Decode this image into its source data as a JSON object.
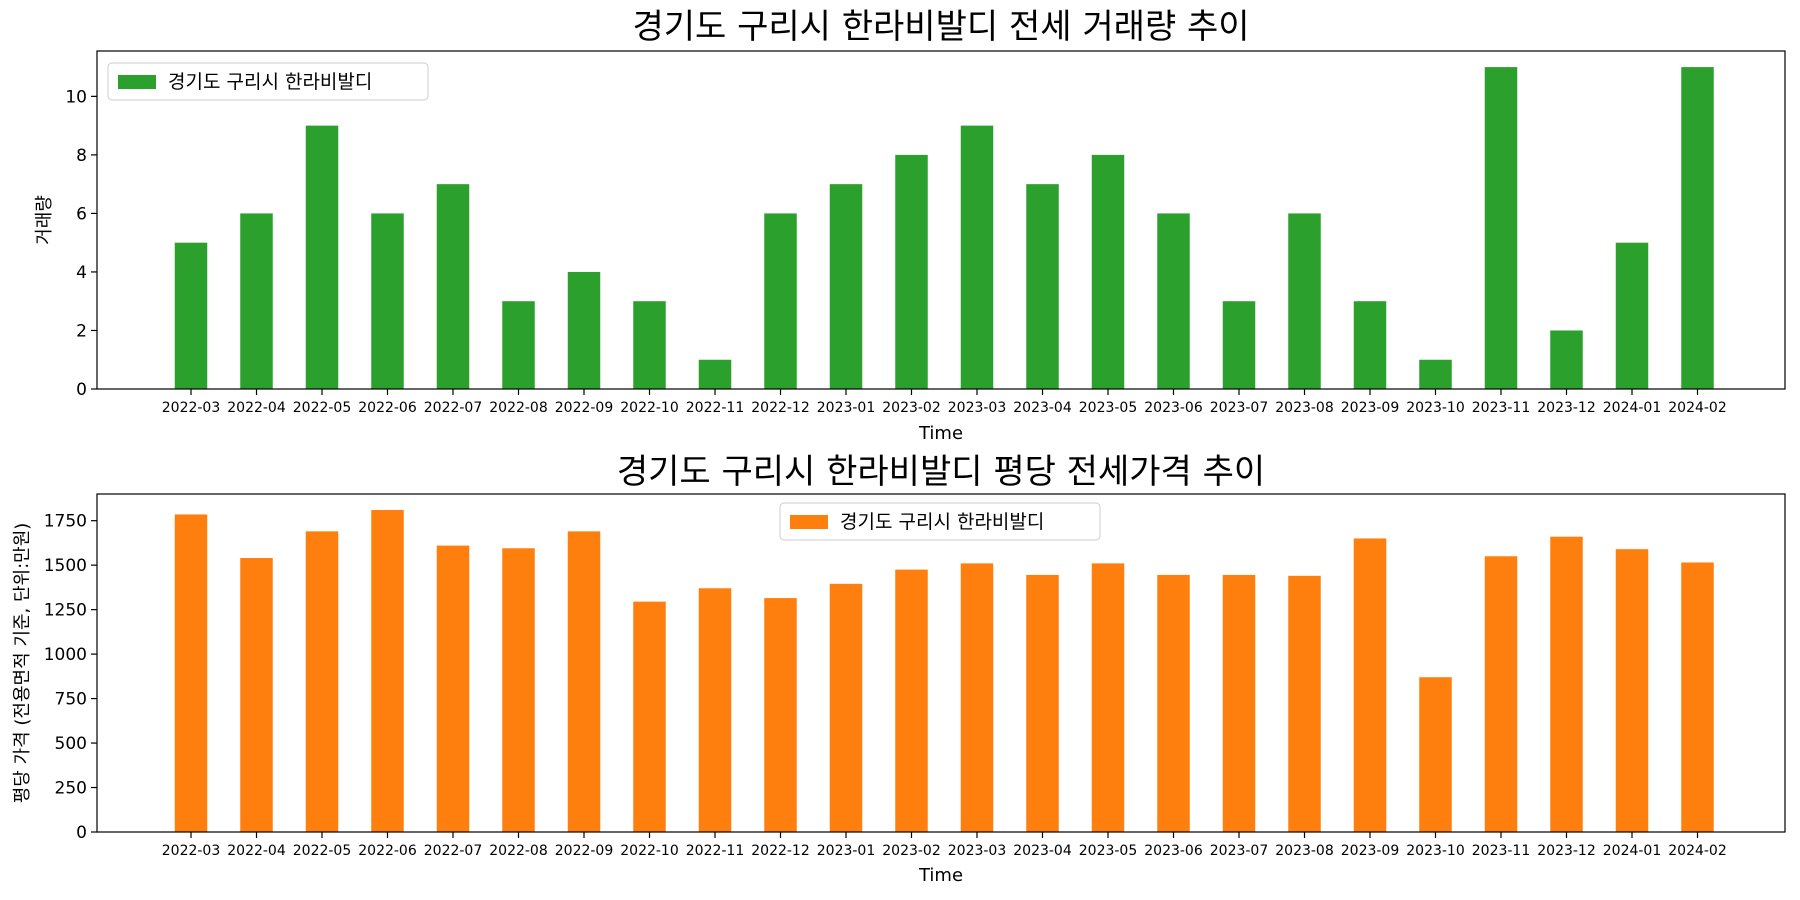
{
  "chart_data": [
    {
      "type": "bar",
      "title": "경기도 구리시 한라비발디 전세 거래량 추이",
      "xlabel": "Time",
      "ylabel": "거래량",
      "ylim": [
        0,
        11.55
      ],
      "yticks": [
        0,
        2,
        4,
        6,
        8,
        10
      ],
      "grid": false,
      "legend_position": "upper left",
      "categories": [
        "2022-03",
        "2022-04",
        "2022-05",
        "2022-06",
        "2022-07",
        "2022-08",
        "2022-09",
        "2022-10",
        "2022-11",
        "2022-12",
        "2023-01",
        "2023-02",
        "2023-03",
        "2023-04",
        "2023-05",
        "2023-06",
        "2023-07",
        "2023-08",
        "2023-09",
        "2023-10",
        "2023-11",
        "2023-12",
        "2024-01",
        "2024-02"
      ],
      "series": [
        {
          "name": "경기도 구리시 한라비발디",
          "color": "#2ca02c",
          "values": [
            5,
            6,
            9,
            6,
            7,
            3,
            4,
            3,
            1,
            6,
            7,
            8,
            9,
            7,
            8,
            6,
            3,
            6,
            3,
            1,
            11,
            2,
            5,
            11
          ]
        }
      ]
    },
    {
      "type": "bar",
      "title": "경기도 구리시 한라비발디 평당 전세가격 추이",
      "xlabel": "Time",
      "ylabel": "평당 가격 (전용면적 기준, 단위:만원)",
      "ylim": [
        0,
        1900
      ],
      "yticks": [
        0,
        250,
        500,
        750,
        1000,
        1250,
        1500,
        1750
      ],
      "grid": false,
      "legend_position": "upper center",
      "categories": [
        "2022-03",
        "2022-04",
        "2022-05",
        "2022-06",
        "2022-07",
        "2022-08",
        "2022-09",
        "2022-10",
        "2022-11",
        "2022-12",
        "2023-01",
        "2023-02",
        "2023-03",
        "2023-04",
        "2023-05",
        "2023-06",
        "2023-07",
        "2023-08",
        "2023-09",
        "2023-10",
        "2023-11",
        "2023-12",
        "2024-01",
        "2024-02"
      ],
      "series": [
        {
          "name": "경기도 구리시 한라비발디",
          "color": "#ff7f0e",
          "values": [
            1785,
            1540,
            1690,
            1810,
            1610,
            1595,
            1690,
            1295,
            1370,
            1315,
            1395,
            1475,
            1510,
            1445,
            1510,
            1445,
            1445,
            1440,
            1650,
            870,
            1550,
            1660,
            1590,
            1515
          ]
        }
      ]
    }
  ]
}
